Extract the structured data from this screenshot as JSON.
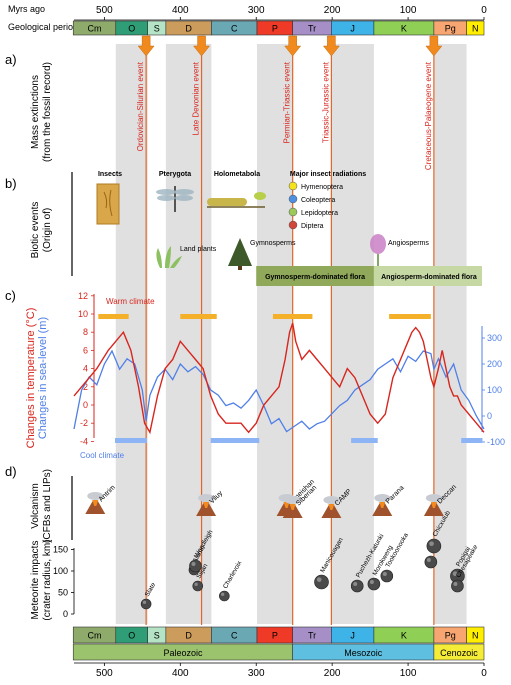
{
  "header": {
    "myrs_label": "Myrs ago",
    "periods_label": "Geological periods"
  },
  "axis_ticks": [
    "500",
    "400",
    "300",
    "200",
    "100",
    "0"
  ],
  "periods": [
    {
      "label": "Cm",
      "color": "#8eab6b"
    },
    {
      "label": "O",
      "color": "#2f9e76"
    },
    {
      "label": "S",
      "color": "#b5e3c5"
    },
    {
      "label": "D",
      "color": "#cc9c5c"
    },
    {
      "label": "C",
      "color": "#6aa9b4"
    },
    {
      "label": "P",
      "color": "#ee3a27"
    },
    {
      "label": "Tr",
      "color": "#a58fc6"
    },
    {
      "label": "J",
      "color": "#3eb3e8"
    },
    {
      "label": "K",
      "color": "#8fcf55"
    },
    {
      "label": "Pg",
      "color": "#f7a672"
    },
    {
      "label": "N",
      "color": "#ffee00"
    }
  ],
  "eras": [
    {
      "label": "Paleozoic",
      "color": "#9bc36e"
    },
    {
      "label": "Mesozoic",
      "color": "#5fbfe0"
    },
    {
      "label": "Cenozoic",
      "color": "#f4ec37"
    }
  ],
  "panels": {
    "a": {
      "letter": "a)",
      "title": "Mass extinctions",
      "subtitle": "(from the fossil record)"
    },
    "b": {
      "letter": "b)",
      "title": "Biotic events",
      "subtitle": "(Origin of)"
    },
    "c": {
      "letter": "c)",
      "title": "Changes in temperature (°C)",
      "subtitle": "Changes in sea-level (m)"
    },
    "d": {
      "letter": "d)",
      "title": "Volcanism",
      "subtitle": "(CFBs and LIPs)"
    },
    "e": {
      "title": "Meteorite impacts",
      "subtitle": "(crater radius, km)"
    }
  },
  "extinctions": [
    {
      "label": "Ordovician-Silurian event",
      "age": 445
    },
    {
      "label": "Late Devonian event",
      "age": 372
    },
    {
      "label": "Permian-Triassic event",
      "age": 252
    },
    {
      "label": "Triassic-Jurassic event",
      "age": 201
    },
    {
      "label": "Cretaceous-Palaeogene event",
      "age": 66
    }
  ],
  "biotic": {
    "insects": "Insects",
    "pterygota": "Pterygota",
    "holometabola": "Holometabola",
    "major_radiations": "Major insect radiations",
    "legend": [
      {
        "label": "Hymenoptera",
        "color": "#f4e21c"
      },
      {
        "label": "Coleoptera",
        "color": "#4f8fe0"
      },
      {
        "label": "Lepidoptera",
        "color": "#9cc95a"
      },
      {
        "label": "Diptera",
        "color": "#d1453b"
      }
    ],
    "land_plants": "Land plants",
    "gymnosperms": "Gymnosperms",
    "angiosperms": "Angiosperms",
    "gymno_flora": "Gymnosperm-dominated flora",
    "angio_flora": "Angiosperm-dominated flora"
  },
  "climate": {
    "warm_label": "Warm climate",
    "cool_label": "Cool climate",
    "left_ticks": [
      "12",
      "10",
      "8",
      "6",
      "4",
      "2",
      "0",
      "-2",
      "-4"
    ],
    "right_ticks": [
      "300",
      "200",
      "100",
      "0",
      "-100"
    ]
  },
  "volcanism": [
    "Antrim",
    "Viluy",
    "Emeishan",
    "Siberian",
    "CAMP",
    "Parana",
    "Deccan"
  ],
  "impacts": {
    "y_ticks": [
      "150",
      "100",
      "50",
      "0"
    ],
    "craters": [
      "Slate",
      "Alamo",
      "Woodleigh",
      "Siljan",
      "Charlevoix",
      "Manicouagan",
      "Puchezh-Katunki",
      "Morokweng",
      "Tookoonooka",
      "Kara",
      "Chicxulub",
      "Popigai",
      "Chesapeake"
    ]
  },
  "colors": {
    "temperature": "#d7261e",
    "sea_level": "#4f7fe8",
    "extinction_line": "#e0662a",
    "arrow": "#f08a1e",
    "shade": "#e0e0e0"
  },
  "chart_data": {
    "type": "line",
    "x_unit": "Myrs ago",
    "xlim": [
      540,
      0
    ],
    "series": [
      {
        "name": "Changes in temperature (°C)",
        "x": [
          540,
          525,
          510,
          495,
          485,
          475,
          465,
          455,
          447,
          440,
          430,
          420,
          410,
          400,
          390,
          380,
          370,
          360,
          350,
          340,
          330,
          320,
          310,
          300,
          290,
          280,
          270,
          262,
          256,
          252,
          248,
          240,
          230,
          220,
          210,
          200,
          190,
          180,
          170,
          160,
          150,
          140,
          130,
          120,
          110,
          100,
          95,
          90,
          85,
          80,
          75,
          70,
          66,
          60,
          55,
          50,
          45,
          40,
          35,
          30,
          20,
          10,
          0
        ],
        "values": [
          1,
          2.5,
          4,
          6,
          7,
          8,
          6,
          2,
          -2,
          -3,
          1,
          4,
          5,
          7,
          6,
          5,
          4,
          1,
          -1,
          -2,
          -2,
          -2,
          -3,
          -2,
          0,
          1,
          2,
          5,
          8,
          9,
          7,
          5,
          6,
          5,
          4,
          3,
          2,
          4,
          3,
          1,
          -1,
          -2,
          -1,
          3,
          5,
          7,
          8,
          8.5,
          8,
          7,
          5,
          3,
          2,
          4,
          6,
          4,
          2,
          1,
          1,
          0,
          -1,
          -2,
          -3
        ],
        "ylim": [
          -4,
          12
        ]
      },
      {
        "name": "Changes in sea-level (m)",
        "x": [
          540,
          530,
          520,
          510,
          500,
          490,
          480,
          470,
          460,
          450,
          445,
          440,
          430,
          420,
          410,
          400,
          390,
          380,
          370,
          360,
          350,
          340,
          330,
          320,
          310,
          300,
          290,
          280,
          270,
          260,
          250,
          240,
          230,
          220,
          210,
          200,
          190,
          180,
          170,
          160,
          150,
          140,
          130,
          120,
          110,
          100,
          90,
          80,
          70,
          66,
          60,
          50,
          40,
          30,
          20,
          10,
          0
        ],
        "values": [
          -50,
          100,
          150,
          120,
          200,
          250,
          180,
          220,
          200,
          100,
          -20,
          80,
          150,
          180,
          140,
          200,
          170,
          190,
          160,
          100,
          80,
          40,
          50,
          30,
          60,
          100,
          40,
          -30,
          -10,
          -60,
          -40,
          -20,
          -50,
          -30,
          -20,
          10,
          40,
          60,
          100,
          120,
          140,
          180,
          200,
          220,
          170,
          230,
          210,
          250,
          240,
          180,
          220,
          150,
          200,
          100,
          60,
          0,
          -50
        ],
        "ylim": [
          -100,
          300
        ]
      }
    ]
  }
}
